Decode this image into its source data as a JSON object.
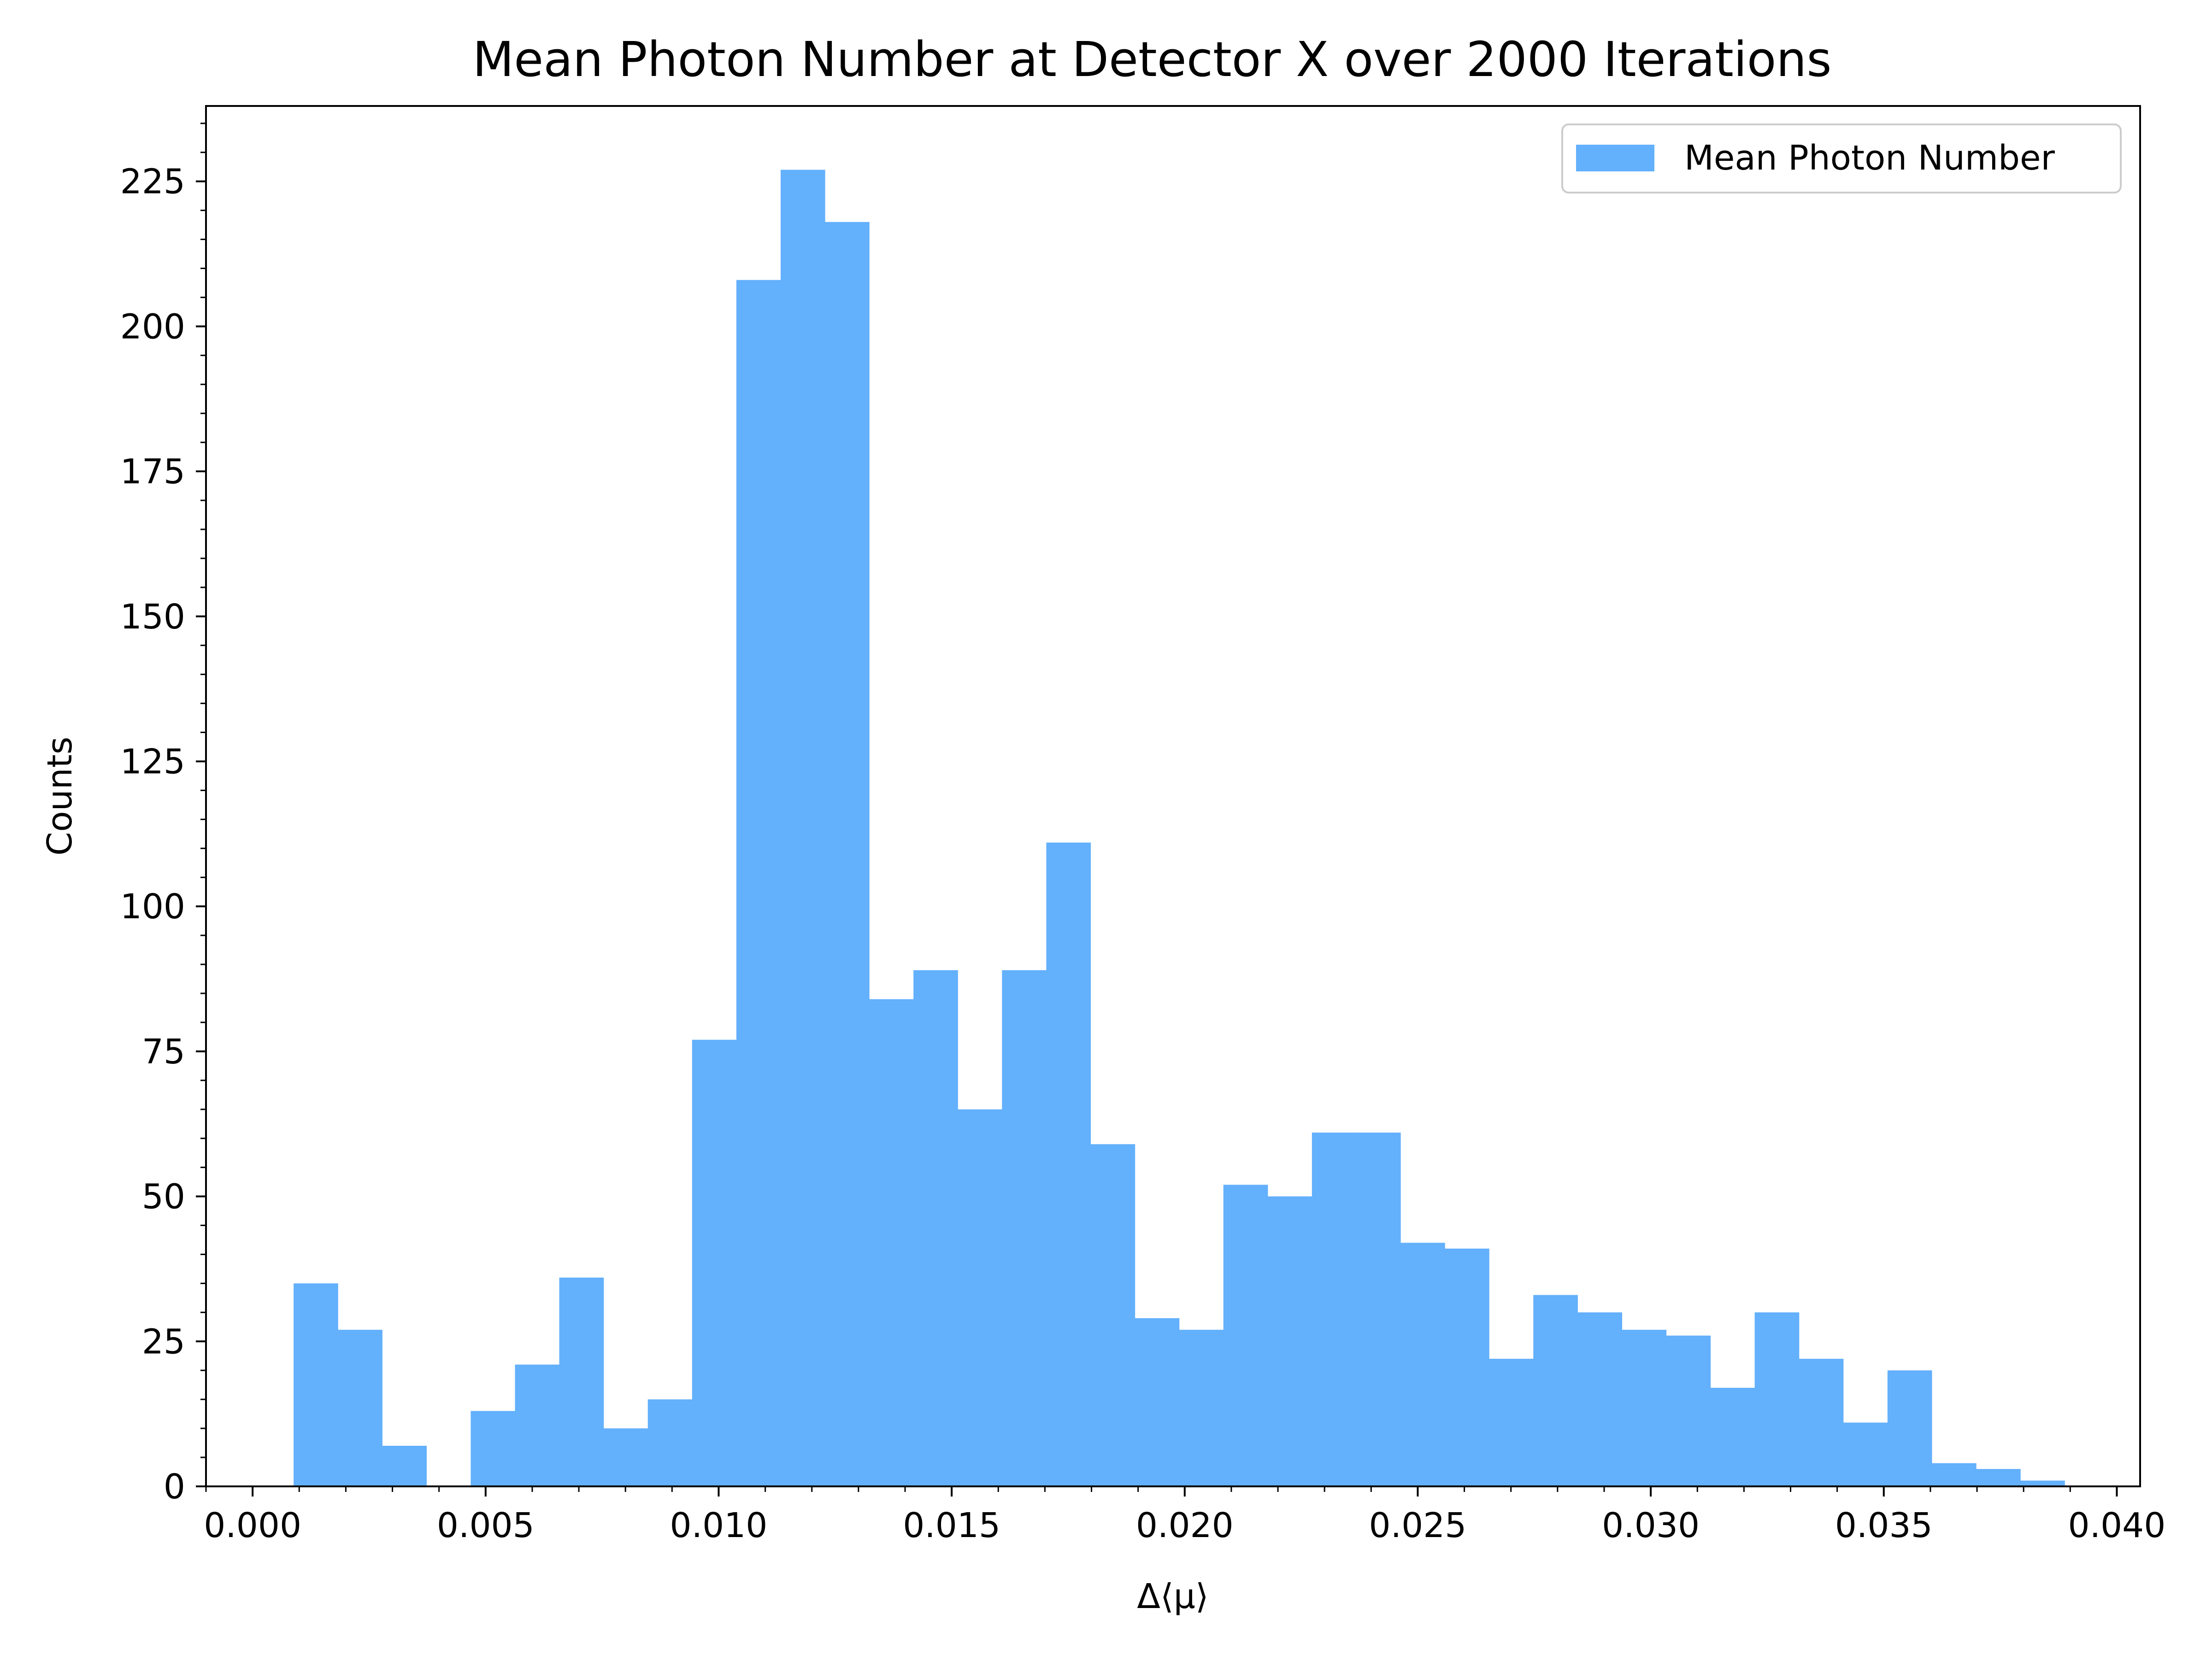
{
  "chart_data": {
    "type": "bar",
    "title": "Mean Photon Number at Detector X over 2000 Iterations",
    "xlabel": "Δ⟨μ⟩",
    "ylabel": "Counts",
    "xlim": [
      -0.001,
      0.0405
    ],
    "ylim": [
      0,
      238
    ],
    "grid": false,
    "legend_position": "top-right",
    "series": [
      {
        "name": "Mean Photon Number",
        "color": "#63b0fc",
        "bin_edges": [
          0.00088,
          0.00183,
          0.00278,
          0.00373,
          0.00468,
          0.00563,
          0.00658,
          0.00753,
          0.00848,
          0.00943,
          0.01038,
          0.01133,
          0.01228,
          0.01323,
          0.01418,
          0.01513,
          0.01608,
          0.01703,
          0.01798,
          0.01893,
          0.01988,
          0.02083,
          0.02178,
          0.02273,
          0.02368,
          0.02463,
          0.02558,
          0.02653,
          0.02748,
          0.02843,
          0.02938,
          0.03033,
          0.03128,
          0.03223,
          0.03318,
          0.03413,
          0.03508,
          0.03603,
          0.03698,
          0.03793,
          0.03888
        ],
        "counts": [
          35,
          27,
          7,
          0,
          13,
          21,
          36,
          10,
          15,
          77,
          208,
          227,
          218,
          84,
          89,
          65,
          89,
          111,
          59,
          29,
          27,
          52,
          50,
          61,
          61,
          42,
          41,
          22,
          33,
          30,
          27,
          26,
          17,
          30,
          22,
          11,
          20,
          4,
          3,
          1
        ]
      }
    ],
    "x_ticks": [
      {
        "value": 0.0,
        "label": "0.000"
      },
      {
        "value": 0.005,
        "label": "0.005"
      },
      {
        "value": 0.01,
        "label": "0.010"
      },
      {
        "value": 0.015,
        "label": "0.015"
      },
      {
        "value": 0.02,
        "label": "0.020"
      },
      {
        "value": 0.025,
        "label": "0.025"
      },
      {
        "value": 0.03,
        "label": "0.030"
      },
      {
        "value": 0.035,
        "label": "0.035"
      },
      {
        "value": 0.04,
        "label": "0.040"
      }
    ],
    "y_ticks": [
      {
        "value": 0,
        "label": "0"
      },
      {
        "value": 25,
        "label": "25"
      },
      {
        "value": 50,
        "label": "50"
      },
      {
        "value": 75,
        "label": "75"
      },
      {
        "value": 100,
        "label": "100"
      },
      {
        "value": 125,
        "label": "125"
      },
      {
        "value": 150,
        "label": "150"
      },
      {
        "value": 175,
        "label": "175"
      },
      {
        "value": 200,
        "label": "200"
      },
      {
        "value": 225,
        "label": "225"
      }
    ],
    "y_minor_step": 5,
    "x_minor_step": 0.001
  }
}
